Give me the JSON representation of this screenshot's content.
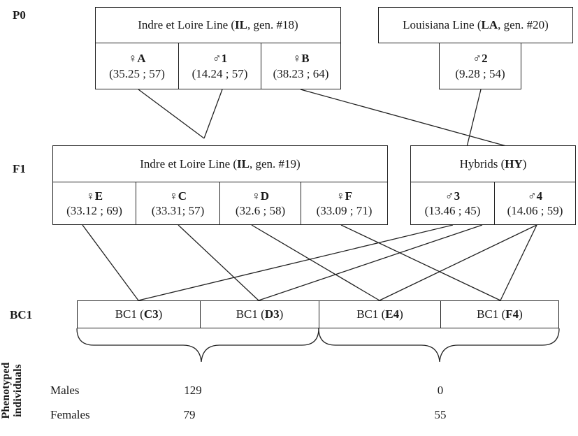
{
  "generations": {
    "p0": "P0",
    "f1": "F1",
    "bc1": "BC1"
  },
  "p0": {
    "il_line": {
      "name": "Indre et Loire Line (",
      "code": "IL",
      "gen": ", gen. #18)"
    },
    "la_line": {
      "name": "Louisiana Line (",
      "code": "LA",
      "gen": ", gen. #20)"
    },
    "individuals": [
      {
        "sex": "♀",
        "id": "A",
        "values": "(35.25 ; 57)"
      },
      {
        "sex": "♂",
        "id": "1",
        "values": "(14.24 ; 57)"
      },
      {
        "sex": "♀",
        "id": "B",
        "values": "(38.23 ; 64)"
      },
      {
        "sex": "♂",
        "id": "2",
        "values": "(9.28 ; 54)"
      }
    ]
  },
  "f1": {
    "il_line": {
      "name": "Indre et Loire Line (",
      "code": "IL",
      "gen": ", gen. #19)"
    },
    "hybrids": {
      "name": "Hybrids (",
      "code": "HY",
      "close": ")"
    },
    "individuals": [
      {
        "sex": "♀",
        "id": "E",
        "values": "(33.12 ; 69)"
      },
      {
        "sex": "♀",
        "id": "C",
        "values": "(33.31; 57)"
      },
      {
        "sex": "♀",
        "id": "D",
        "values": "(32.6 ; 58)"
      },
      {
        "sex": "♀",
        "id": "F",
        "values": "(33.09 ; 71)"
      },
      {
        "sex": "♂",
        "id": "3",
        "values": "(13.46 ; 45)"
      },
      {
        "sex": "♂",
        "id": "4",
        "values": "(14.06 ; 59)"
      }
    ]
  },
  "bc1": {
    "families": [
      {
        "prefix": "BC1 (",
        "code": "C3",
        "close": ")"
      },
      {
        "prefix": "BC1 (",
        "code": "D3",
        "close": ")"
      },
      {
        "prefix": "BC1 (",
        "code": "E4",
        "close": ")"
      },
      {
        "prefix": "BC1 (",
        "code": "F4",
        "close": ")"
      }
    ]
  },
  "phenotyped": {
    "title_line1": "Phenotyped",
    "title_line2": "individuals",
    "rows": [
      {
        "label": "Males",
        "left": "129",
        "right": "0"
      },
      {
        "label": "Females",
        "left": "79",
        "right": "55"
      }
    ]
  }
}
